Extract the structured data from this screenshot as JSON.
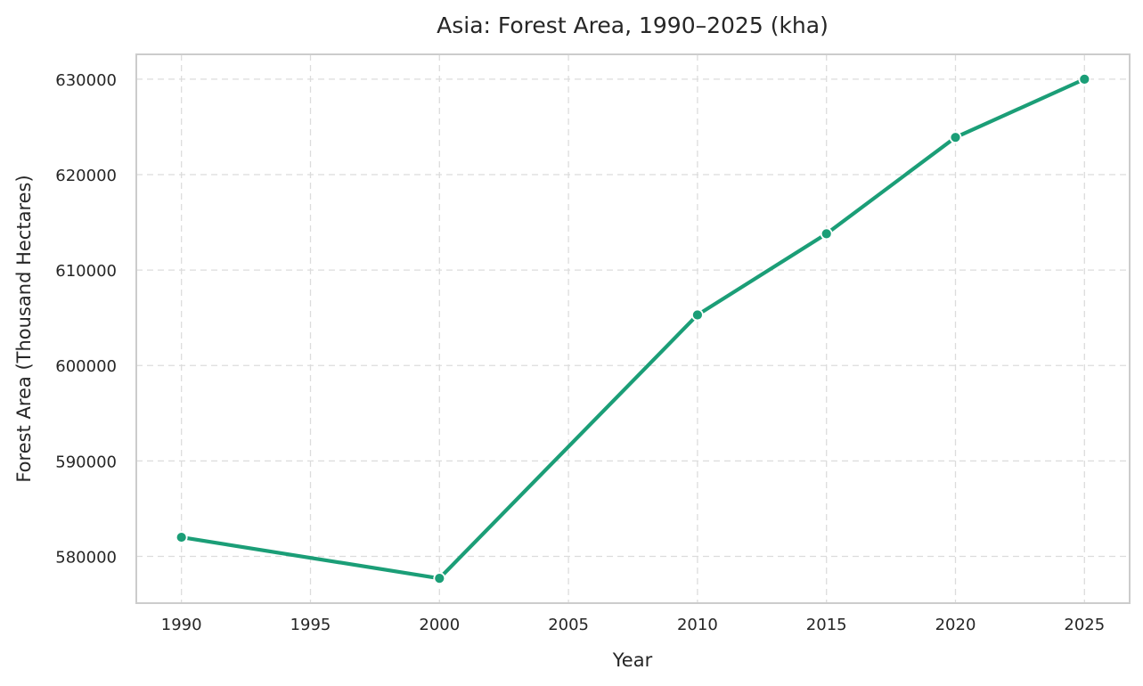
{
  "chart_data": {
    "type": "line",
    "title": "Asia: Forest Area, 1990–2025 (kha)",
    "xlabel": "Year",
    "ylabel": "Forest Area (Thousand Hectares)",
    "x": [
      1990,
      2000,
      2010,
      2015,
      2020,
      2025
    ],
    "series": [
      {
        "values": [
          582000,
          577700,
          605300,
          613800,
          623900,
          630000
        ]
      }
    ],
    "xticks": [
      "1990",
      "1995",
      "2000",
      "2005",
      "2010",
      "2015",
      "2020",
      "2025"
    ],
    "yticks": [
      "580000",
      "590000",
      "600000",
      "610000",
      "620000",
      "630000"
    ],
    "xlim": [
      1988.25,
      2026.75
    ],
    "ylim": [
      575100,
      632600
    ],
    "grid": true,
    "line_color": "#1b9e77"
  }
}
